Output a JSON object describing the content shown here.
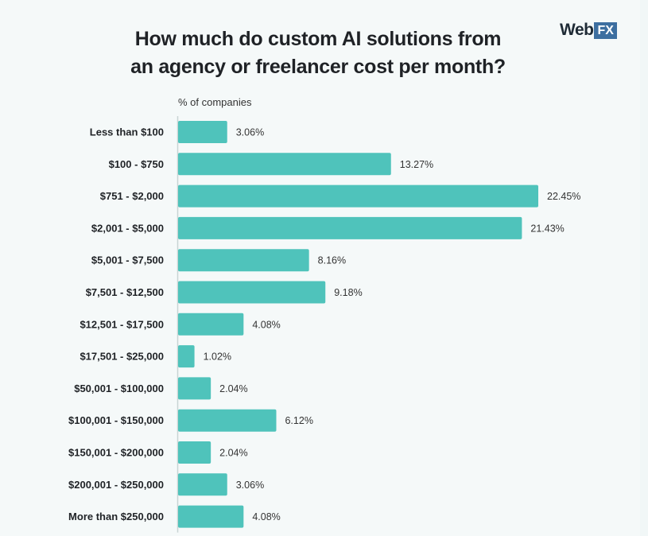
{
  "brand": {
    "logo_main": "Web",
    "logo_accent": "FX"
  },
  "colors": {
    "bar": "#4fc3bb",
    "axis": "#c9d4d4"
  },
  "chart_data": {
    "type": "bar",
    "orientation": "horizontal",
    "title_line1": "How much do custom AI solutions from",
    "title_line2": "an agency or freelancer cost per month?",
    "unit_label": "% of companies",
    "categories": [
      "Less than $100",
      "$100 - $750",
      "$751 - $2,000",
      "$2,001 - $5,000",
      "$5,001 - $7,500",
      "$7,501 - $12,500",
      "$12,501 - $17,500",
      "$17,501 - $25,000",
      "$50,001 - $100,000",
      "$100,001 - $150,000",
      "$150,001 - $200,000",
      "$200,001 - $250,000",
      "More than $250,000"
    ],
    "values": [
      3.06,
      13.27,
      22.45,
      21.43,
      8.16,
      9.18,
      4.08,
      1.02,
      2.04,
      6.12,
      2.04,
      3.06,
      4.08
    ],
    "value_labels": [
      "3.06%",
      "13.27%",
      "22.45%",
      "21.43%",
      "8.16%",
      "9.18%",
      "4.08%",
      "1.02%",
      "2.04%",
      "6.12%",
      "2.04%",
      "3.06%",
      "4.08%"
    ],
    "grid": false,
    "legend": "none"
  }
}
